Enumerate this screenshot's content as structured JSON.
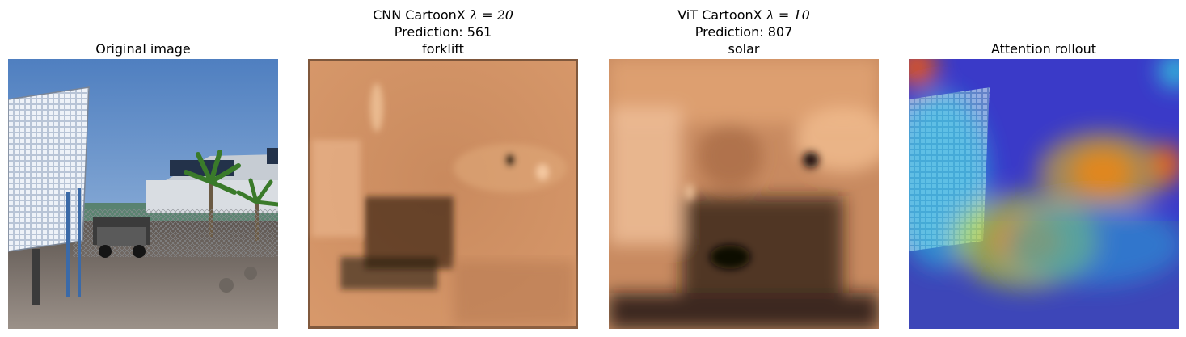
{
  "panels": [
    {
      "title_lines": [
        "Original image"
      ]
    },
    {
      "title_prefix": "CNN CartoonX",
      "title_param": "λ = 20",
      "title_lines": [
        "Prediction: 561",
        "forklift"
      ]
    },
    {
      "title_prefix": "ViT CartoonX",
      "title_param": "λ = 10",
      "title_lines": [
        "Prediction: 807",
        "solar"
      ]
    },
    {
      "title_lines": [
        "Attention rollout"
      ]
    }
  ],
  "colors": {
    "sky": "#6f98cf",
    "ground": "#8a8177",
    "copper_dark": "#2a1a10",
    "copper_light": "#f0b486",
    "heat_hot": "#ff2a00",
    "heat_cold": "#2a2ad8"
  },
  "icons": [
    "solar-panel-array",
    "pickup-truck",
    "palm-tree",
    "building",
    "chainlink-fence"
  ]
}
